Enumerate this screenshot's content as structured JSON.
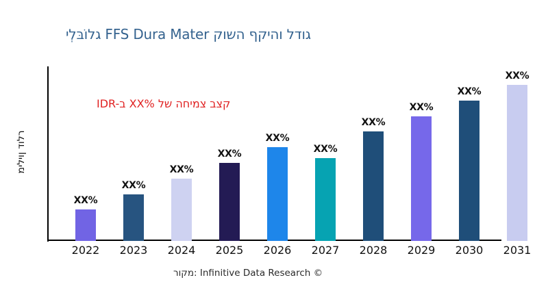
{
  "title": {
    "text": "ילְבּוֹלג FFS Dura Mater קושה ףקיהו לדוג",
    "color": "#35638F"
  },
  "annotation": {
    "text": "IDR-ב XX% לש החימצ בצק",
    "color": "#E02222"
  },
  "y_axis_label": "מיליון דולר",
  "footer": {
    "text": "רוקמ: Infinitive Data Research ©"
  },
  "chart_data": {
    "type": "bar",
    "title": "ילְבּוֹלג FFS Dura Mater קושה ףקיהו לדוג",
    "ylabel": "מיליון דולר",
    "xlabel": "",
    "categories": [
      "2022",
      "2023",
      "2024",
      "2025",
      "2026",
      "2027",
      "2028",
      "2029",
      "2030",
      "2031"
    ],
    "values": [
      2,
      3,
      4,
      5,
      6,
      5.3,
      7,
      8,
      9,
      10
    ],
    "bar_labels": [
      "XX%",
      "XX%",
      "XX%",
      "XX%",
      "XX%",
      "XX%",
      "XX%",
      "XX%",
      "XX%",
      "XX%"
    ],
    "bar_colors": [
      "#7164E4",
      "#275480",
      "#CED2F1",
      "#231B54",
      "#1E86EA",
      "#06A3B2",
      "#1F4E79",
      "#7668EA",
      "#1F4E79",
      "#C8CCF0"
    ],
    "annotation": "IDR-ב XX% לש החימצ בצק",
    "ylim": [
      0,
      10.5
    ],
    "grid": false,
    "legend": false,
    "note": "no numeric y-axis tick labels are shown; values are relative bar heights"
  }
}
